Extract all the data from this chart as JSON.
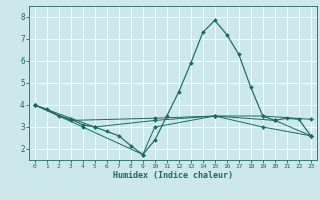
{
  "xlabel": "Humidex (Indice chaleur)",
  "background_color": "#cce8e8",
  "grid_color": "#ffffff",
  "line_color": "#1a6b60",
  "xlim": [
    -0.5,
    23.5
  ],
  "ylim": [
    1.5,
    8.5
  ],
  "xticks": [
    0,
    1,
    2,
    3,
    4,
    5,
    6,
    7,
    8,
    9,
    10,
    11,
    12,
    13,
    14,
    15,
    16,
    17,
    18,
    19,
    20,
    21,
    22,
    23
  ],
  "yticks": [
    2,
    3,
    4,
    5,
    6,
    7,
    8
  ],
  "series": [
    {
      "x": [
        0,
        1,
        2,
        3,
        4,
        5,
        6,
        7,
        8,
        9,
        10,
        11,
        12,
        13,
        14,
        15,
        16,
        17,
        18,
        19,
        20,
        21,
        22,
        23
      ],
      "y": [
        4.0,
        3.8,
        3.5,
        3.35,
        3.1,
        3.0,
        2.8,
        2.6,
        2.15,
        1.75,
        2.4,
        3.5,
        4.6,
        5.9,
        7.3,
        7.85,
        7.2,
        6.3,
        4.8,
        3.5,
        3.3,
        3.4,
        3.35,
        2.6
      ]
    },
    {
      "x": [
        0,
        3,
        10,
        15,
        19,
        23
      ],
      "y": [
        4.0,
        3.3,
        3.4,
        3.5,
        3.5,
        3.35
      ]
    },
    {
      "x": [
        0,
        4,
        9,
        10,
        15,
        19,
        23
      ],
      "y": [
        4.0,
        3.0,
        1.75,
        3.0,
        3.5,
        3.0,
        2.6
      ]
    },
    {
      "x": [
        0,
        5,
        10,
        15,
        20,
        23
      ],
      "y": [
        4.0,
        3.0,
        3.3,
        3.5,
        3.3,
        2.6
      ]
    }
  ]
}
